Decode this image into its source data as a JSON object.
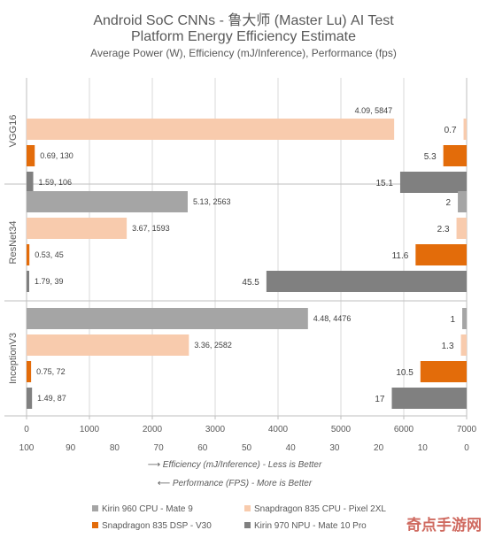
{
  "chart_data": {
    "type": "bar",
    "title": "Android SoC CNNs - 鲁大师 (Master Lu) AI Test",
    "subtitle": "Platform Energy Efficiency Estimate",
    "subsubtitle": "Average Power (W), Efficiency (mJ/Inference), Performance (fps)",
    "categories": [
      "VGG16",
      "ResNet34",
      "InceptionV3"
    ],
    "series": [
      {
        "name": "Kirin 960 CPU - Mate 9",
        "color": "#a5a5a5",
        "efficiency": [
          null,
          2563,
          4476
        ],
        "fps": [
          null,
          2,
          1
        ],
        "labels": [
          null,
          "5.13, 2563",
          "4.48, 4476"
        ]
      },
      {
        "name": "Snapdragon 835 CPU - Pixel 2XL",
        "color": "#f8cbad",
        "efficiency": [
          5847,
          1593,
          2582
        ],
        "fps": [
          0.7,
          2.3,
          1.3
        ],
        "labels": [
          "4.09, 5847",
          "3.67, 1593",
          "3.36, 2582"
        ]
      },
      {
        "name": "Snapdragon 835 DSP - V30",
        "color": "#e36c0a",
        "efficiency": [
          130,
          45,
          72
        ],
        "fps": [
          5.3,
          11.6,
          10.5
        ],
        "labels": [
          "0.69, 130",
          "0.53, 45",
          "0.75, 72"
        ]
      },
      {
        "name": "Kirin 970 NPU - Mate 10 Pro",
        "color": "#808080",
        "efficiency": [
          106,
          39,
          87
        ],
        "fps": [
          15.1,
          45.5,
          17
        ],
        "labels": [
          "1.59, 106",
          "1.79, 39",
          "1.49, 87"
        ]
      }
    ],
    "efficiency_axis": {
      "min": 0,
      "max": 7000,
      "ticks": [
        0,
        1000,
        2000,
        3000,
        4000,
        5000,
        6000,
        7000
      ],
      "tick_labels": [
        "0",
        "1000",
        "2000",
        "3000",
        "4000",
        "5000",
        "6000",
        "7000"
      ]
    },
    "fps_axis": {
      "min": 0,
      "max": 100,
      "reversed": true,
      "ticks": [
        100,
        90,
        80,
        70,
        60,
        50,
        40,
        30,
        20,
        10,
        0
      ],
      "tick_labels": [
        "100",
        "90",
        "80",
        "70",
        "60",
        "50",
        "40",
        "30",
        "20",
        "10",
        "0"
      ]
    },
    "axis_notes": [
      "⟶ Efficiency (mJ/Inference) - Less is Better",
      "⟵ Performance (FPS) - More is Better"
    ],
    "legend_placement": "bottom",
    "grid": true
  },
  "watermark": "奇点手游网"
}
